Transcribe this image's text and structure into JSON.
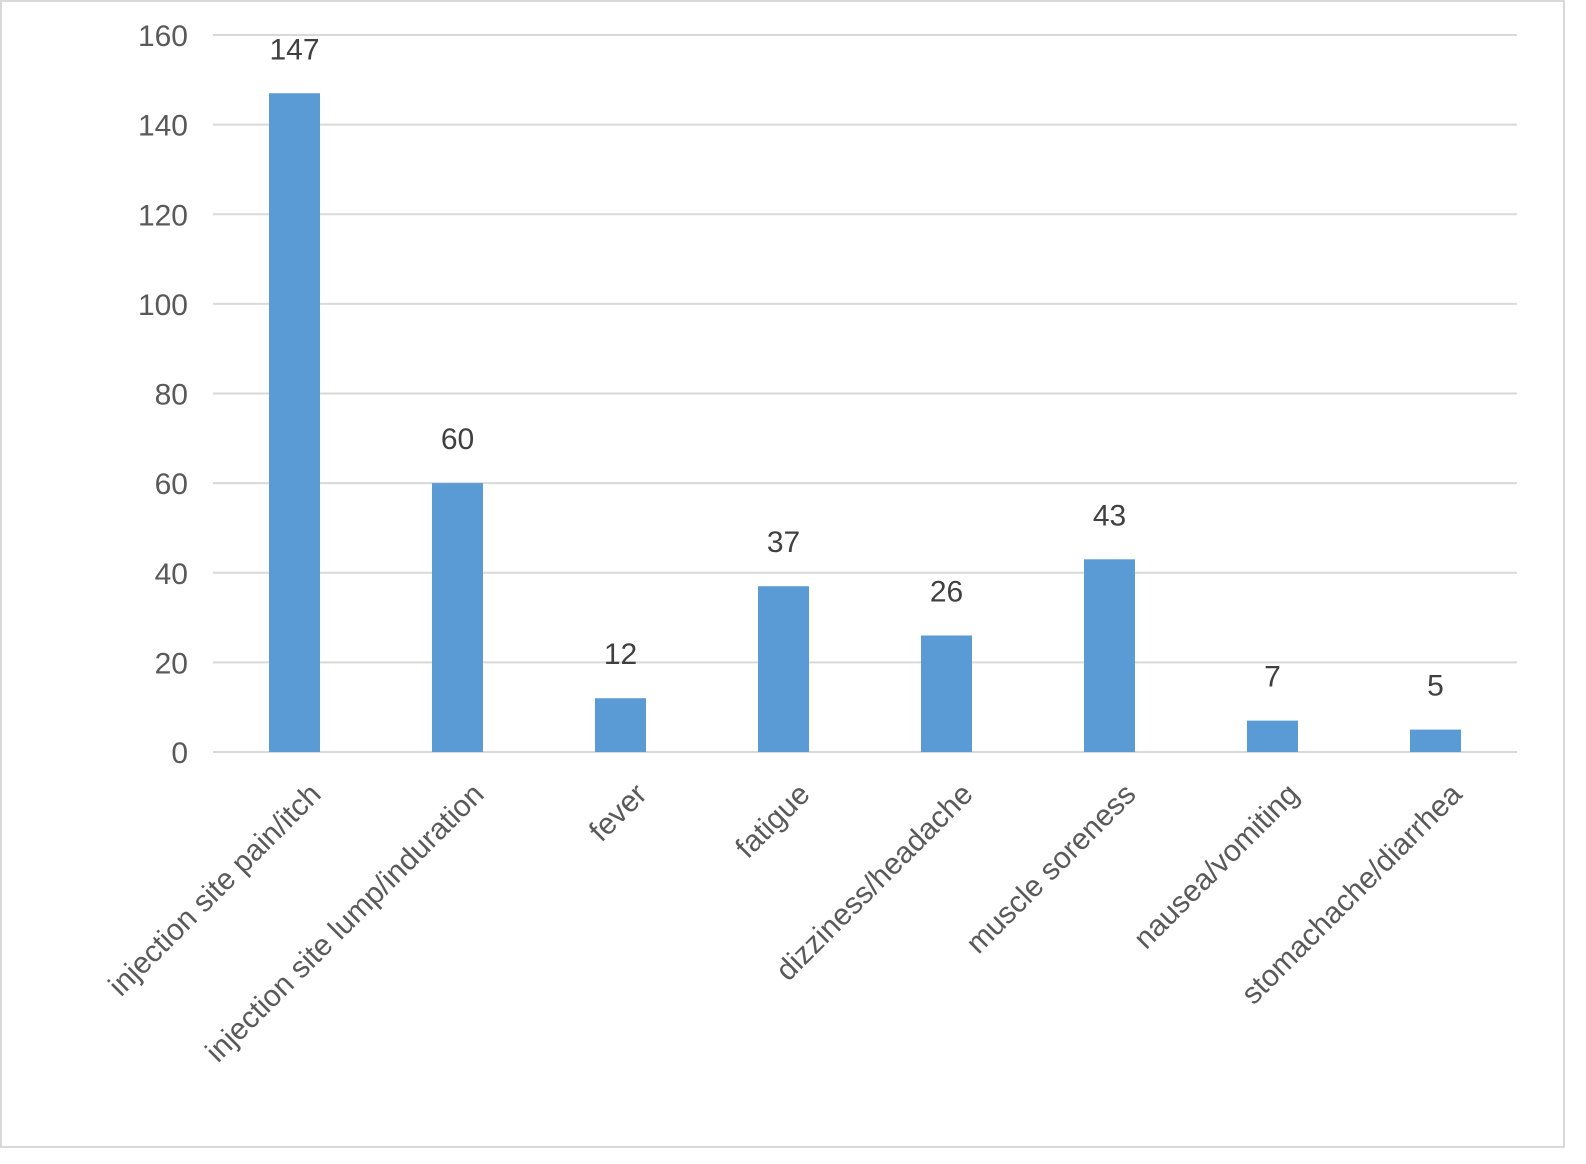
{
  "chart_data": {
    "type": "bar",
    "title": "",
    "xlabel": "",
    "ylabel": "",
    "categories": [
      "injection site pain/itch",
      "injection site lump/induration",
      "fever",
      "fatigue",
      "dizziness/headache",
      "muscle soreness",
      "nausea/vomiting",
      "stomachache/diarrhea"
    ],
    "values": [
      147,
      60,
      12,
      37,
      26,
      43,
      7,
      5
    ],
    "data_labels": [
      "147",
      "60",
      "12",
      "37",
      "26",
      "43",
      "7",
      "5"
    ],
    "ylim": [
      0,
      160
    ],
    "yticks": [
      0,
      20,
      40,
      60,
      80,
      100,
      120,
      140,
      160
    ],
    "grid": true,
    "legend": "none",
    "colors": {
      "bar": "#5b9bd5",
      "grid": "#d9d9d9",
      "tick_text": "#595959",
      "label_text": "#404040"
    }
  }
}
